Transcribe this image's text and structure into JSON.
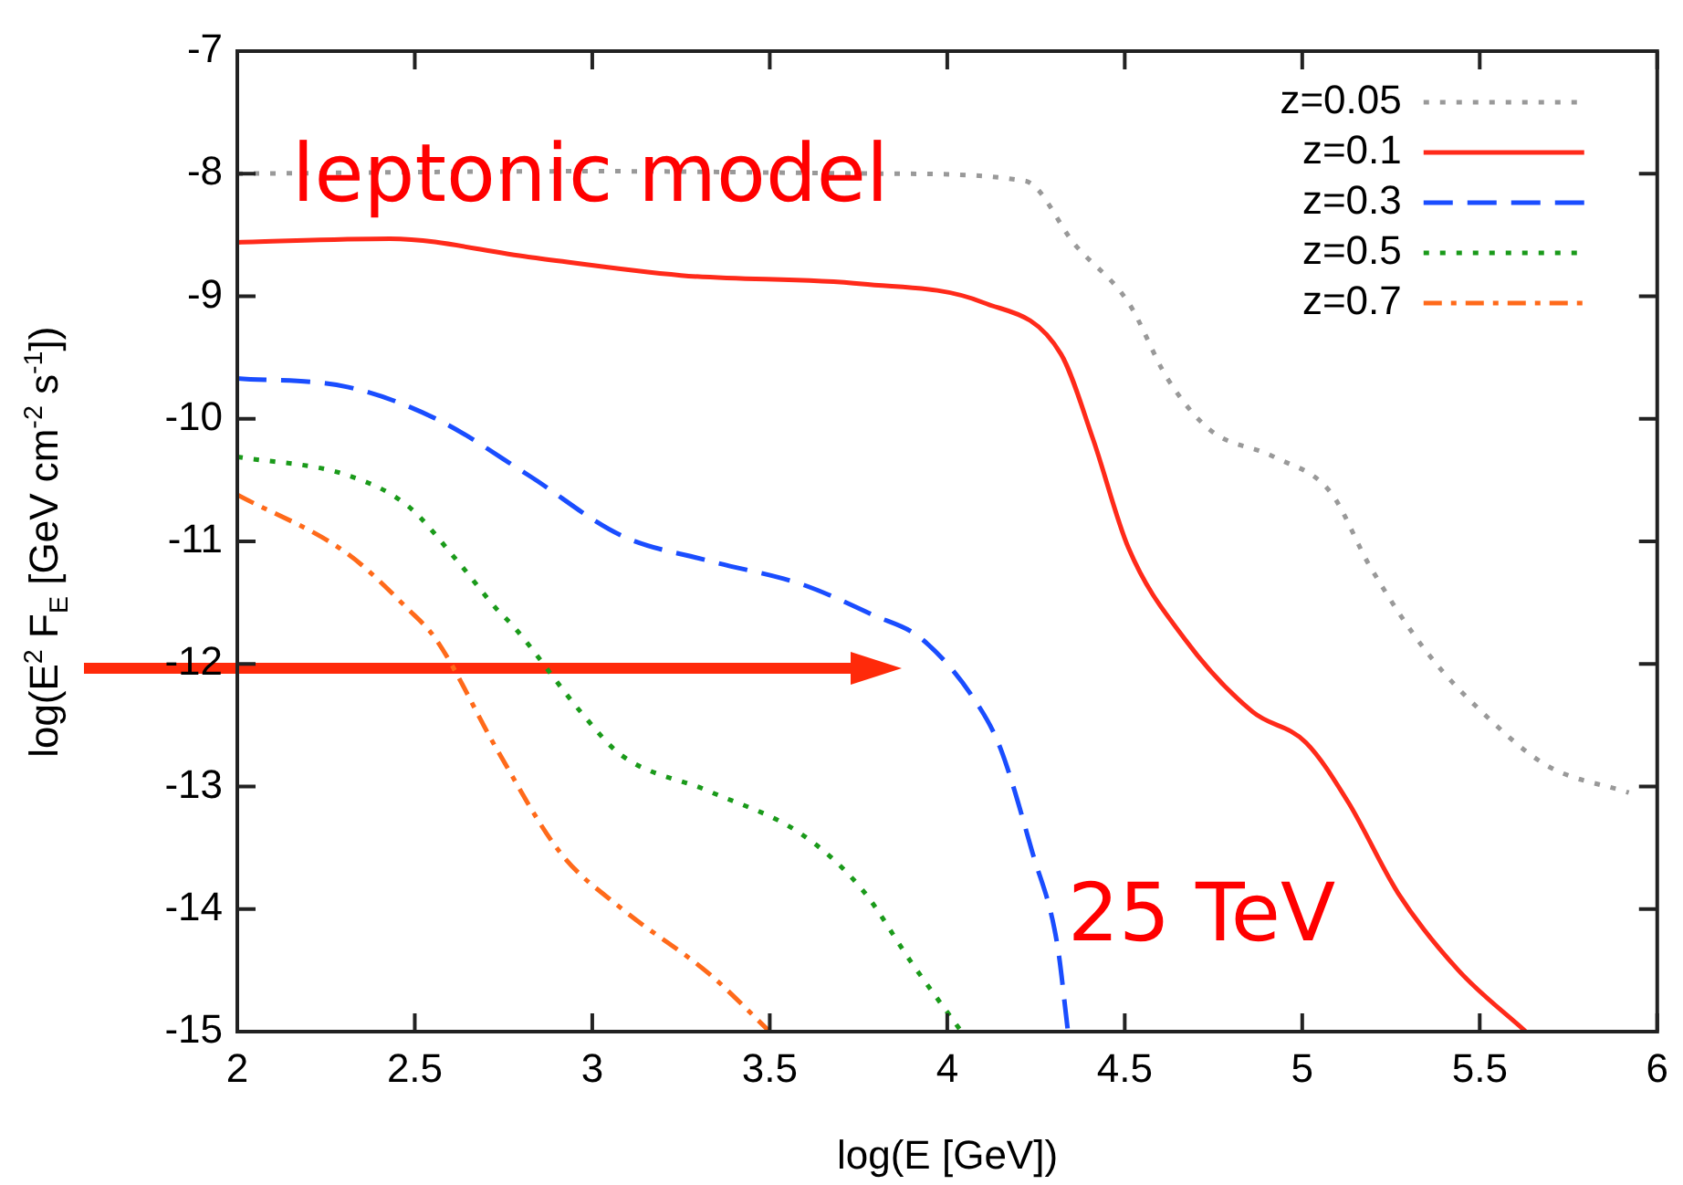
{
  "chart_data": {
    "type": "line",
    "xlabel": "log(E [GeV])",
    "ylabel": "log(E$^{2}$ F$_{E}$ [GeV cm$^{-2}$ s$^{-1}$])",
    "annotations": [
      "leptonic model",
      "25 TeV"
    ],
    "xlim": [
      2,
      6
    ],
    "xticks": [
      2,
      2.5,
      3,
      3.5,
      4,
      4.5,
      5,
      5.5,
      6
    ],
    "ylim": [
      -15,
      -7
    ],
    "yticks": [
      -15,
      -14,
      -13,
      -12,
      -11,
      -10,
      -9,
      -8,
      -7
    ],
    "grid": false,
    "legend": "top right",
    "marker": "none",
    "series": [
      {
        "name": "z=0.05",
        "color": "#999999",
        "line_style": "dotted",
        "x": [
          2,
          3,
          3.85,
          4.22,
          4.36,
          4.51,
          4.62,
          4.74,
          4.92,
          5.08,
          5.19,
          5.35,
          5.52,
          5.69,
          5.92
        ],
        "values": [
          -8,
          -7.98,
          -8,
          -8.06,
          -8.58,
          -9.05,
          -9.67,
          -10.09,
          -10.31,
          -10.6,
          -11.2,
          -11.9,
          -12.43,
          -12.83,
          -13.05
        ]
      },
      {
        "name": "z=0.1",
        "color": "#ff2a1a",
        "line_style": "solid",
        "x": [
          2,
          2.43,
          2.82,
          3.25,
          3.76,
          4.1,
          4.32,
          4.41,
          4.51,
          4.67,
          4.86,
          5.01,
          5.13,
          5.27,
          5.44,
          5.63
        ],
        "values": [
          -8.56,
          -8.53,
          -8.68,
          -8.83,
          -8.9,
          -9.05,
          -9.47,
          -10.16,
          -11.05,
          -11.8,
          -12.39,
          -12.64,
          -13.13,
          -13.87,
          -14.5,
          -15
        ]
      },
      {
        "name": "z=0.3",
        "color": "#1a4dff",
        "line_style": "dashed",
        "x": [
          2,
          2.31,
          2.56,
          2.82,
          3.08,
          3.33,
          3.59,
          3.79,
          3.93,
          4.09,
          4.15,
          4.24,
          4.31,
          4.34
        ],
        "values": [
          -9.67,
          -9.74,
          -10,
          -10.46,
          -10.95,
          -11.16,
          -11.35,
          -11.6,
          -11.8,
          -12.35,
          -12.69,
          -13.54,
          -14.29,
          -15
        ]
      },
      {
        "name": "z=0.5",
        "color": "#1a9a1a",
        "line_style": "dotted",
        "x": [
          2,
          2.31,
          2.48,
          2.62,
          2.73,
          2.78,
          2.97,
          3.08,
          3.33,
          3.59,
          3.76,
          3.9,
          4.04
        ],
        "values": [
          -10.31,
          -10.46,
          -10.71,
          -11.16,
          -11.55,
          -11.7,
          -12.4,
          -12.74,
          -13.04,
          -13.39,
          -13.84,
          -14.44,
          -15
        ]
      },
      {
        "name": "z=0.7",
        "color": "#ff6a1a",
        "line_style": "dashdot",
        "x": [
          2,
          2.31,
          2.48,
          2.56,
          2.73,
          2.91,
          3.08,
          3.33,
          3.5
        ],
        "values": [
          -10.62,
          -11.1,
          -11.55,
          -11.8,
          -12.69,
          -13.54,
          -13.99,
          -14.53,
          -15
        ]
      }
    ]
  }
}
